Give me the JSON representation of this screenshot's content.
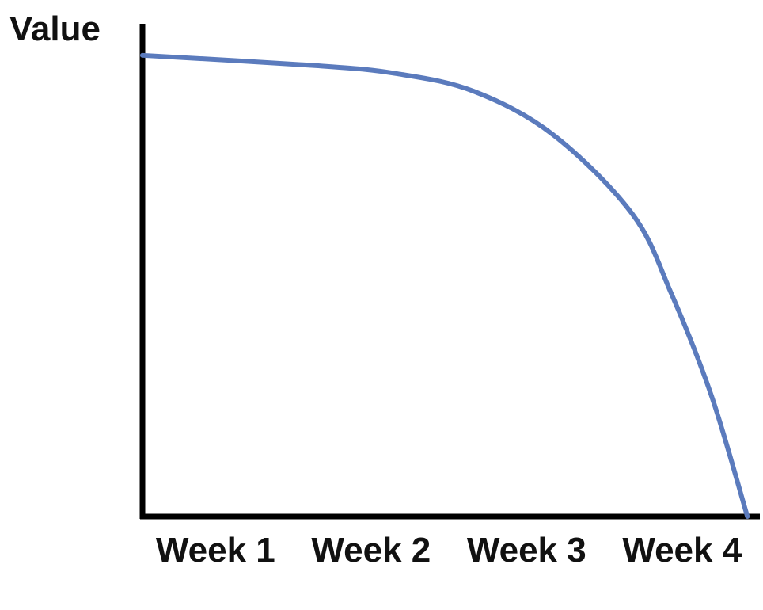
{
  "chart_data": {
    "type": "line",
    "y_label": "Value",
    "x": [
      0.53,
      1.65,
      2.16,
      2.66,
      3.17,
      3.68,
      3.93,
      4.19,
      4.42
    ],
    "series": [
      {
        "color": "#5b7bbd",
        "values": [
          93.6,
          91.5,
          89.9,
          86.3,
          77.5,
          61.4,
          45.3,
          24.4,
          0
        ]
      }
    ],
    "xlim": [
      0.53,
      4.5
    ],
    "xticks": [
      {
        "value": 1,
        "label": "Week 1"
      },
      {
        "value": 2,
        "label": "Week 2"
      },
      {
        "value": 3,
        "label": "Week 3"
      },
      {
        "value": 4,
        "label": "Week 4"
      }
    ],
    "ylim": [
      0,
      100
    ]
  }
}
